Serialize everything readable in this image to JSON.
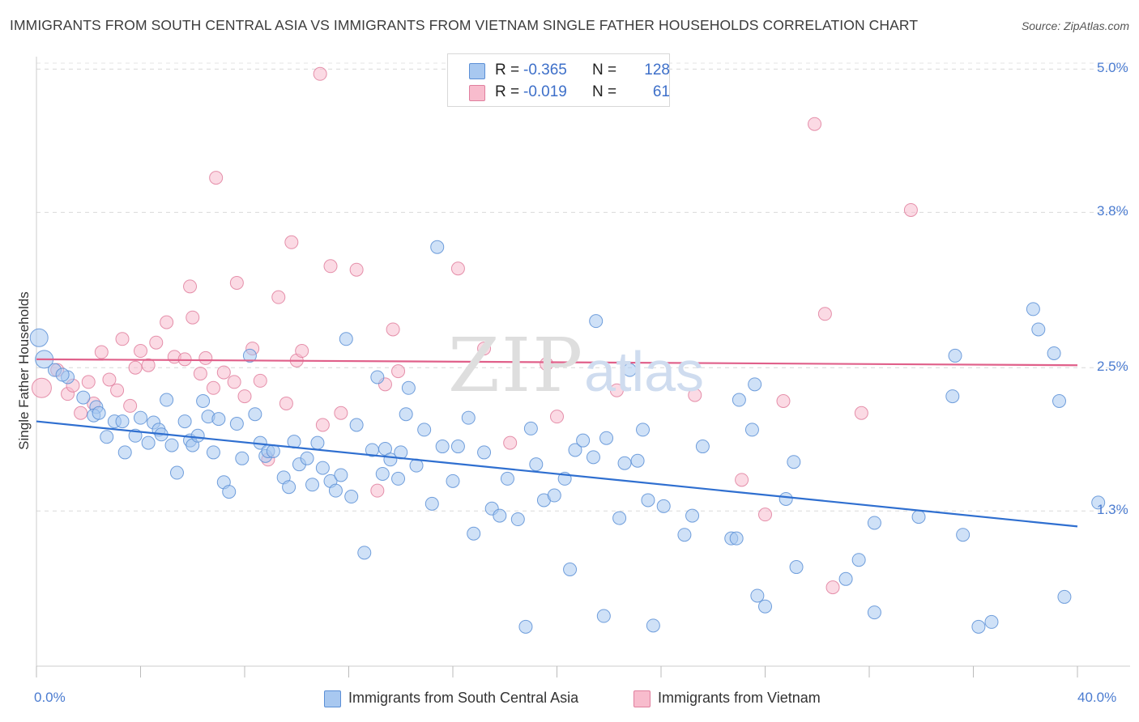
{
  "title": "IMMIGRANTS FROM SOUTH CENTRAL ASIA VS IMMIGRANTS FROM VIETNAM SINGLE FATHER HOUSEHOLDS CORRELATION CHART",
  "source": "Source: ZipAtlas.com",
  "watermark": {
    "zip": "ZIP",
    "atlas": "atlas"
  },
  "legend": {
    "r_label": "R =",
    "n_label": "N =",
    "rows": [
      {
        "name": "Immigrants from South Central Asia",
        "r": "-0.365",
        "n": "128",
        "color": "#a8c8f0",
        "stroke": "#5b8fd6"
      },
      {
        "name": "Immigrants from Vietnam",
        "r": "-0.019",
        "n": "61",
        "color": "#f8bccd",
        "stroke": "#e07f9e"
      }
    ]
  },
  "chart_data": {
    "type": "scatter",
    "title": "IMMIGRANTS FROM SOUTH CENTRAL ASIA VS IMMIGRANTS FROM VIETNAM SINGLE FATHER HOUSEHOLDS CORRELATION CHART",
    "xlabel": "",
    "ylabel": "Single Father Households",
    "xlim": [
      0,
      40
    ],
    "ylim": [
      0,
      5.05
    ],
    "x_tick_labels": [
      "0.0%",
      "40.0%"
    ],
    "y_ticks": [
      1.3,
      2.5,
      3.8,
      5.0
    ],
    "y_tick_labels": [
      "1.3%",
      "2.5%",
      "3.8%",
      "5.0%"
    ],
    "grid": true,
    "legend_position": "top-center",
    "series": [
      {
        "name": "Immigrants from South Central Asia",
        "color": "#a8c8f0",
        "stroke": "#5b8fd6",
        "trend": {
          "x": [
            0,
            40
          ],
          "y": [
            2.05,
            1.17
          ],
          "color": "#2f6fd0"
        },
        "points": [
          [
            0.1,
            2.75
          ],
          [
            0.3,
            2.57
          ],
          [
            0.7,
            2.48
          ],
          [
            1.2,
            2.42
          ],
          [
            1.8,
            2.25
          ],
          [
            2.3,
            2.17
          ],
          [
            2.2,
            2.1
          ],
          [
            2.4,
            2.12
          ],
          [
            2.7,
            1.92
          ],
          [
            3.0,
            2.05
          ],
          [
            3.3,
            2.05
          ],
          [
            3.4,
            1.79
          ],
          [
            3.8,
            1.93
          ],
          [
            4.0,
            2.08
          ],
          [
            4.3,
            1.87
          ],
          [
            4.5,
            2.04
          ],
          [
            4.7,
            1.98
          ],
          [
            4.8,
            1.94
          ],
          [
            5.0,
            2.23
          ],
          [
            5.2,
            1.85
          ],
          [
            5.4,
            1.62
          ],
          [
            5.7,
            2.05
          ],
          [
            5.9,
            1.89
          ],
          [
            6.0,
            1.85
          ],
          [
            6.2,
            1.93
          ],
          [
            6.4,
            2.22
          ],
          [
            6.6,
            2.09
          ],
          [
            6.8,
            1.79
          ],
          [
            7.0,
            2.07
          ],
          [
            7.2,
            1.54
          ],
          [
            7.4,
            1.46
          ],
          [
            7.7,
            2.03
          ],
          [
            7.9,
            1.74
          ],
          [
            8.2,
            2.6
          ],
          [
            8.6,
            1.87
          ],
          [
            8.8,
            1.76
          ],
          [
            8.9,
            1.8
          ],
          [
            9.1,
            1.8
          ],
          [
            9.5,
            1.58
          ],
          [
            9.7,
            1.5
          ],
          [
            9.9,
            1.88
          ],
          [
            10.1,
            1.69
          ],
          [
            10.4,
            1.74
          ],
          [
            10.6,
            1.52
          ],
          [
            10.8,
            1.87
          ],
          [
            11.0,
            1.66
          ],
          [
            11.3,
            1.55
          ],
          [
            11.5,
            1.47
          ],
          [
            11.7,
            1.6
          ],
          [
            11.9,
            2.74
          ],
          [
            12.1,
            1.42
          ],
          [
            12.3,
            2.02
          ],
          [
            12.6,
            0.95
          ],
          [
            12.9,
            1.81
          ],
          [
            13.1,
            2.42
          ],
          [
            13.3,
            1.61
          ],
          [
            13.4,
            1.82
          ],
          [
            13.6,
            1.73
          ],
          [
            13.9,
            1.57
          ],
          [
            14.2,
            2.11
          ],
          [
            14.3,
            2.33
          ],
          [
            14.6,
            1.68
          ],
          [
            14.9,
            1.98
          ],
          [
            15.2,
            1.36
          ],
          [
            15.4,
            3.51
          ],
          [
            15.6,
            1.84
          ],
          [
            16.0,
            1.55
          ],
          [
            16.2,
            1.84
          ],
          [
            16.6,
            2.08
          ],
          [
            16.8,
            1.11
          ],
          [
            17.2,
            1.79
          ],
          [
            17.5,
            1.32
          ],
          [
            17.8,
            1.26
          ],
          [
            18.1,
            1.57
          ],
          [
            18.5,
            1.23
          ],
          [
            18.8,
            0.33
          ],
          [
            19.0,
            1.99
          ],
          [
            19.2,
            1.69
          ],
          [
            19.5,
            1.39
          ],
          [
            19.9,
            1.43
          ],
          [
            20.3,
            1.57
          ],
          [
            20.5,
            0.81
          ],
          [
            20.7,
            1.81
          ],
          [
            21.0,
            1.89
          ],
          [
            21.4,
            1.75
          ],
          [
            21.5,
            2.89
          ],
          [
            21.8,
            0.42
          ],
          [
            21.9,
            1.91
          ],
          [
            22.4,
            1.24
          ],
          [
            22.6,
            1.7
          ],
          [
            22.8,
            2.48
          ],
          [
            23.1,
            1.72
          ],
          [
            23.3,
            1.98
          ],
          [
            23.5,
            1.39
          ],
          [
            23.7,
            0.34
          ],
          [
            24.1,
            1.34
          ],
          [
            24.9,
            1.1
          ],
          [
            25.2,
            1.26
          ],
          [
            25.6,
            1.84
          ],
          [
            26.7,
            1.07
          ],
          [
            26.9,
            1.07
          ],
          [
            27.0,
            2.23
          ],
          [
            27.5,
            1.98
          ],
          [
            27.6,
            2.36
          ],
          [
            27.7,
            0.59
          ],
          [
            28.0,
            0.5
          ],
          [
            28.8,
            1.4
          ],
          [
            29.1,
            1.71
          ],
          [
            29.2,
            0.83
          ],
          [
            31.1,
            0.73
          ],
          [
            31.6,
            0.89
          ],
          [
            32.2,
            0.45
          ],
          [
            32.2,
            1.2
          ],
          [
            33.9,
            1.25
          ],
          [
            35.2,
            2.26
          ],
          [
            35.3,
            2.6
          ],
          [
            35.6,
            1.1
          ],
          [
            36.2,
            0.33
          ],
          [
            36.7,
            0.37
          ],
          [
            38.3,
            2.99
          ],
          [
            38.5,
            2.82
          ],
          [
            39.1,
            2.62
          ],
          [
            39.3,
            2.22
          ],
          [
            39.5,
            0.58
          ],
          [
            40.8,
            1.37
          ],
          [
            1.0,
            2.44
          ],
          [
            8.4,
            2.11
          ],
          [
            14.0,
            1.79
          ]
        ]
      },
      {
        "name": "Immigrants from Vietnam",
        "color": "#f8bccd",
        "stroke": "#e07f9e",
        "trend": {
          "x": [
            0,
            40
          ],
          "y": [
            2.57,
            2.52
          ],
          "color": "#e0608a"
        },
        "points": [
          [
            0.2,
            2.33
          ],
          [
            0.8,
            2.48
          ],
          [
            1.2,
            2.28
          ],
          [
            1.4,
            2.35
          ],
          [
            1.7,
            2.12
          ],
          [
            2.0,
            2.38
          ],
          [
            2.2,
            2.2
          ],
          [
            2.5,
            2.63
          ],
          [
            2.8,
            2.4
          ],
          [
            3.1,
            2.31
          ],
          [
            3.3,
            2.74
          ],
          [
            3.6,
            2.18
          ],
          [
            3.8,
            2.5
          ],
          [
            4.0,
            2.64
          ],
          [
            4.3,
            2.52
          ],
          [
            4.6,
            2.71
          ],
          [
            5.0,
            2.88
          ],
          [
            5.3,
            2.59
          ],
          [
            5.7,
            2.57
          ],
          [
            5.9,
            3.18
          ],
          [
            6.0,
            2.92
          ],
          [
            6.3,
            2.45
          ],
          [
            6.5,
            2.58
          ],
          [
            6.8,
            2.33
          ],
          [
            6.9,
            4.09
          ],
          [
            7.2,
            2.46
          ],
          [
            7.6,
            2.38
          ],
          [
            7.7,
            3.21
          ],
          [
            8.0,
            2.26
          ],
          [
            8.3,
            2.66
          ],
          [
            8.6,
            2.39
          ],
          [
            8.9,
            1.73
          ],
          [
            9.3,
            3.09
          ],
          [
            9.6,
            2.2
          ],
          [
            9.8,
            3.55
          ],
          [
            10.0,
            2.56
          ],
          [
            10.2,
            2.64
          ],
          [
            10.9,
            4.96
          ],
          [
            11.0,
            2.02
          ],
          [
            11.3,
            3.35
          ],
          [
            11.7,
            2.12
          ],
          [
            12.3,
            3.32
          ],
          [
            13.1,
            1.47
          ],
          [
            13.4,
            2.36
          ],
          [
            13.7,
            2.82
          ],
          [
            13.9,
            2.47
          ],
          [
            16.2,
            3.33
          ],
          [
            17.2,
            2.66
          ],
          [
            18.2,
            1.87
          ],
          [
            19.6,
            2.53
          ],
          [
            20.0,
            2.09
          ],
          [
            22.3,
            2.31
          ],
          [
            25.3,
            2.27
          ],
          [
            27.1,
            1.56
          ],
          [
            28.0,
            1.27
          ],
          [
            28.7,
            2.22
          ],
          [
            29.9,
            4.54
          ],
          [
            30.3,
            2.95
          ],
          [
            30.6,
            0.66
          ],
          [
            31.7,
            2.12
          ],
          [
            33.6,
            3.82
          ]
        ]
      }
    ]
  }
}
